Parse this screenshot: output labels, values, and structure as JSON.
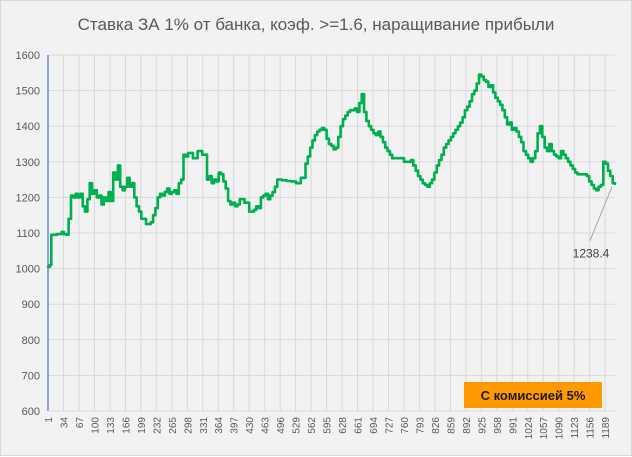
{
  "chart_data": {
    "type": "line",
    "title": "Ставка ЗА 1% от банка, коэф. >=1.6, наращивание прибыли",
    "xlabel": "",
    "ylabel": "",
    "ylim": [
      600,
      1600
    ],
    "yticks": [
      600,
      700,
      800,
      900,
      1000,
      1100,
      1200,
      1300,
      1400,
      1500,
      1600
    ],
    "xlim": [
      1,
      1210
    ],
    "xticks": [
      1,
      34,
      67,
      100,
      133,
      166,
      199,
      232,
      265,
      298,
      331,
      364,
      397,
      430,
      463,
      496,
      529,
      562,
      595,
      628,
      661,
      694,
      727,
      760,
      793,
      826,
      859,
      892,
      925,
      958,
      991,
      1024,
      1057,
      1090,
      1123,
      1156,
      1189
    ],
    "grid": true,
    "legend": "none",
    "series": [
      {
        "color": "#00b050",
        "x": [
          1,
          5,
          8,
          12,
          20,
          30,
          35,
          40,
          45,
          50,
          55,
          60,
          65,
          70,
          75,
          80,
          85,
          90,
          95,
          100,
          105,
          110,
          115,
          120,
          125,
          130,
          135,
          140,
          145,
          150,
          155,
          160,
          165,
          170,
          175,
          180,
          185,
          190,
          195,
          200,
          210,
          220,
          225,
          230,
          235,
          240,
          245,
          250,
          255,
          260,
          265,
          270,
          275,
          280,
          285,
          290,
          295,
          300,
          310,
          320,
          330,
          340,
          345,
          350,
          355,
          360,
          365,
          370,
          375,
          380,
          385,
          390,
          395,
          400,
          405,
          410,
          420,
          430,
          440,
          445,
          450,
          455,
          460,
          465,
          470,
          475,
          480,
          485,
          490,
          495,
          500,
          510,
          520,
          530,
          540,
          550,
          555,
          560,
          565,
          570,
          575,
          580,
          585,
          590,
          595,
          600,
          605,
          610,
          615,
          620,
          625,
          630,
          635,
          640,
          645,
          650,
          655,
          660,
          665,
          670,
          675,
          680,
          685,
          690,
          695,
          700,
          705,
          710,
          715,
          720,
          725,
          730,
          735,
          740,
          745,
          750,
          755,
          760,
          765,
          770,
          775,
          780,
          785,
          790,
          795,
          800,
          805,
          810,
          815,
          820,
          825,
          830,
          835,
          840,
          845,
          850,
          855,
          860,
          865,
          870,
          875,
          880,
          885,
          890,
          895,
          900,
          905,
          910,
          915,
          920,
          925,
          930,
          935,
          940,
          945,
          950,
          955,
          960,
          965,
          970,
          975,
          980,
          985,
          990,
          995,
          1000,
          1005,
          1010,
          1015,
          1020,
          1025,
          1030,
          1035,
          1040,
          1045,
          1050,
          1055,
          1060,
          1065,
          1070,
          1075,
          1080,
          1085,
          1090,
          1095,
          1100,
          1105,
          1110,
          1115,
          1120,
          1125,
          1130,
          1135,
          1140,
          1145,
          1150,
          1155,
          1160,
          1165,
          1170,
          1175,
          1180,
          1185,
          1190,
          1195,
          1200,
          1205,
          1210
        ],
        "values": [
          1005,
          1010,
          1095,
          1095,
          1097,
          1103,
          1097,
          1095,
          1140,
          1205,
          1200,
          1210,
          1200,
          1210,
          1175,
          1160,
          1195,
          1240,
          1210,
          1220,
          1200,
          1205,
          1180,
          1200,
          1190,
          1215,
          1190,
          1270,
          1250,
          1290,
          1230,
          1220,
          1230,
          1255,
          1230,
          1240,
          1200,
          1175,
          1160,
          1140,
          1125,
          1130,
          1150,
          1170,
          1200,
          1210,
          1205,
          1215,
          1225,
          1210,
          1215,
          1220,
          1210,
          1240,
          1250,
          1320,
          1315,
          1325,
          1310,
          1330,
          1320,
          1250,
          1260,
          1240,
          1250,
          1245,
          1270,
          1265,
          1245,
          1225,
          1190,
          1180,
          1185,
          1175,
          1180,
          1195,
          1185,
          1160,
          1165,
          1175,
          1170,
          1200,
          1205,
          1210,
          1195,
          1205,
          1215,
          1230,
          1250,
          1250,
          1248,
          1246,
          1245,
          1240,
          1255,
          1295,
          1315,
          1340,
          1360,
          1375,
          1385,
          1390,
          1395,
          1390,
          1365,
          1350,
          1345,
          1335,
          1340,
          1370,
          1400,
          1420,
          1430,
          1440,
          1445,
          1445,
          1450,
          1440,
          1465,
          1490,
          1440,
          1415,
          1400,
          1390,
          1380,
          1375,
          1385,
          1370,
          1355,
          1340,
          1330,
          1320,
          1310,
          1310,
          1310,
          1310,
          1310,
          1300,
          1300,
          1300,
          1305,
          1290,
          1275,
          1260,
          1250,
          1240,
          1235,
          1230,
          1240,
          1250,
          1270,
          1290,
          1305,
          1320,
          1340,
          1350,
          1360,
          1370,
          1380,
          1390,
          1400,
          1410,
          1425,
          1445,
          1455,
          1470,
          1490,
          1500,
          1520,
          1545,
          1540,
          1530,
          1525,
          1510,
          1515,
          1495,
          1480,
          1470,
          1460,
          1445,
          1425,
          1405,
          1410,
          1390,
          1395,
          1385,
          1370,
          1355,
          1330,
          1320,
          1310,
          1300,
          1310,
          1330,
          1380,
          1400,
          1370,
          1340,
          1330,
          1350,
          1330,
          1320,
          1315,
          1310,
          1330,
          1320,
          1310,
          1300,
          1290,
          1280,
          1270,
          1265,
          1265,
          1265,
          1265,
          1260,
          1245,
          1235,
          1225,
          1220,
          1230,
          1235,
          1300,
          1295,
          1275,
          1260,
          1240,
          1238.4
        ]
      }
    ],
    "annotation": {
      "text": "1238.4",
      "x": 1210,
      "y": 1238.4
    },
    "badge": "С комиссией 5%"
  }
}
